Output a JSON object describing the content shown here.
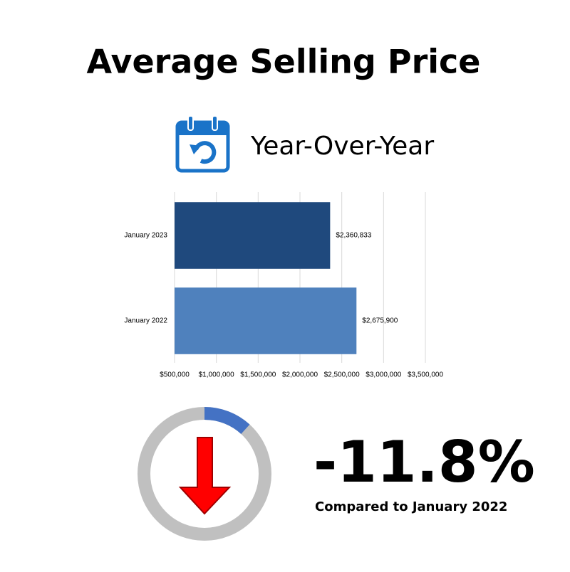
{
  "chart_data": {
    "type": "hbar",
    "title": "Average Selling Price",
    "subtitle": "Year-Over-Year",
    "categories": [
      "January 2023",
      "January 2022"
    ],
    "values": [
      2360833,
      2675900
    ],
    "value_labels": [
      "$2,360,833",
      "$2,675,900"
    ],
    "colors": [
      "#1f497d",
      "#4f81bd"
    ],
    "xlim": [
      500000,
      3500000
    ],
    "xticks": [
      {
        "value": 500000,
        "label": "$500,000"
      },
      {
        "value": 1000000,
        "label": "$1,000,000"
      },
      {
        "value": 1500000,
        "label": "$1,500,000"
      },
      {
        "value": 2000000,
        "label": "$2,000,000"
      },
      {
        "value": 2500000,
        "label": "$2,500,000"
      },
      {
        "value": 3000000,
        "label": "$3,000,000"
      },
      {
        "value": 3500000,
        "label": "$3,500,000"
      }
    ],
    "grid": true,
    "change_value": -11.8,
    "change_label": "-11.8%",
    "change_note": "Compared to January 2022",
    "donut_color": "#4472c4",
    "donut_track_color": "#c0c0c0"
  }
}
